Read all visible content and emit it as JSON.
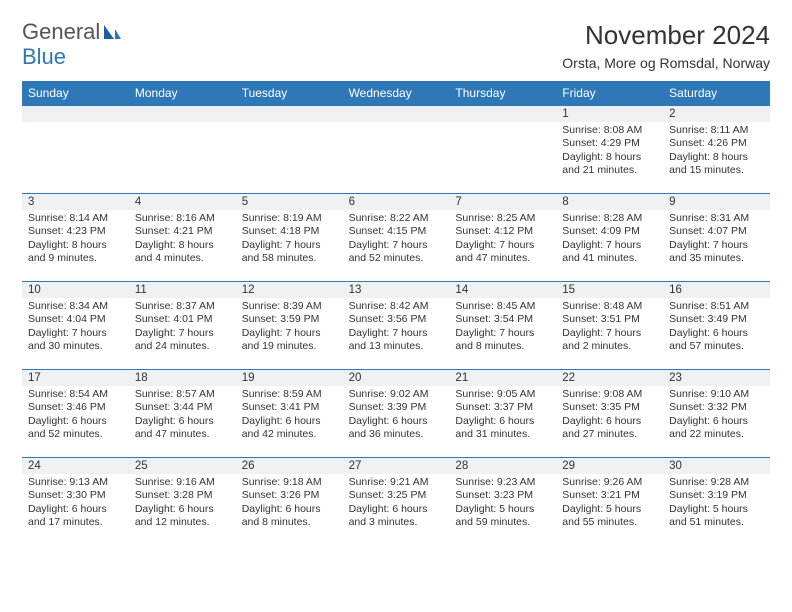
{
  "logo": {
    "line1": "General",
    "line2": "Blue",
    "accent": "#2f78b7"
  },
  "title": "November 2024",
  "location": "Orsta, More og Romsdal, Norway",
  "colors": {
    "header_bg": "#2f78b7",
    "header_fg": "#ffffff",
    "daynum_bg": "#eef0f2",
    "border": "#2f78b7",
    "text": "#333333"
  },
  "daysOfWeek": [
    "Sunday",
    "Monday",
    "Tuesday",
    "Wednesday",
    "Thursday",
    "Friday",
    "Saturday"
  ],
  "leadingBlanks": 5,
  "days": [
    {
      "n": 1,
      "sunrise": "8:08 AM",
      "sunset": "4:29 PM",
      "dl": "8 hours and 21 minutes."
    },
    {
      "n": 2,
      "sunrise": "8:11 AM",
      "sunset": "4:26 PM",
      "dl": "8 hours and 15 minutes."
    },
    {
      "n": 3,
      "sunrise": "8:14 AM",
      "sunset": "4:23 PM",
      "dl": "8 hours and 9 minutes."
    },
    {
      "n": 4,
      "sunrise": "8:16 AM",
      "sunset": "4:21 PM",
      "dl": "8 hours and 4 minutes."
    },
    {
      "n": 5,
      "sunrise": "8:19 AM",
      "sunset": "4:18 PM",
      "dl": "7 hours and 58 minutes."
    },
    {
      "n": 6,
      "sunrise": "8:22 AM",
      "sunset": "4:15 PM",
      "dl": "7 hours and 52 minutes."
    },
    {
      "n": 7,
      "sunrise": "8:25 AM",
      "sunset": "4:12 PM",
      "dl": "7 hours and 47 minutes."
    },
    {
      "n": 8,
      "sunrise": "8:28 AM",
      "sunset": "4:09 PM",
      "dl": "7 hours and 41 minutes."
    },
    {
      "n": 9,
      "sunrise": "8:31 AM",
      "sunset": "4:07 PM",
      "dl": "7 hours and 35 minutes."
    },
    {
      "n": 10,
      "sunrise": "8:34 AM",
      "sunset": "4:04 PM",
      "dl": "7 hours and 30 minutes."
    },
    {
      "n": 11,
      "sunrise": "8:37 AM",
      "sunset": "4:01 PM",
      "dl": "7 hours and 24 minutes."
    },
    {
      "n": 12,
      "sunrise": "8:39 AM",
      "sunset": "3:59 PM",
      "dl": "7 hours and 19 minutes."
    },
    {
      "n": 13,
      "sunrise": "8:42 AM",
      "sunset": "3:56 PM",
      "dl": "7 hours and 13 minutes."
    },
    {
      "n": 14,
      "sunrise": "8:45 AM",
      "sunset": "3:54 PM",
      "dl": "7 hours and 8 minutes."
    },
    {
      "n": 15,
      "sunrise": "8:48 AM",
      "sunset": "3:51 PM",
      "dl": "7 hours and 2 minutes."
    },
    {
      "n": 16,
      "sunrise": "8:51 AM",
      "sunset": "3:49 PM",
      "dl": "6 hours and 57 minutes."
    },
    {
      "n": 17,
      "sunrise": "8:54 AM",
      "sunset": "3:46 PM",
      "dl": "6 hours and 52 minutes."
    },
    {
      "n": 18,
      "sunrise": "8:57 AM",
      "sunset": "3:44 PM",
      "dl": "6 hours and 47 minutes."
    },
    {
      "n": 19,
      "sunrise": "8:59 AM",
      "sunset": "3:41 PM",
      "dl": "6 hours and 42 minutes."
    },
    {
      "n": 20,
      "sunrise": "9:02 AM",
      "sunset": "3:39 PM",
      "dl": "6 hours and 36 minutes."
    },
    {
      "n": 21,
      "sunrise": "9:05 AM",
      "sunset": "3:37 PM",
      "dl": "6 hours and 31 minutes."
    },
    {
      "n": 22,
      "sunrise": "9:08 AM",
      "sunset": "3:35 PM",
      "dl": "6 hours and 27 minutes."
    },
    {
      "n": 23,
      "sunrise": "9:10 AM",
      "sunset": "3:32 PM",
      "dl": "6 hours and 22 minutes."
    },
    {
      "n": 24,
      "sunrise": "9:13 AM",
      "sunset": "3:30 PM",
      "dl": "6 hours and 17 minutes."
    },
    {
      "n": 25,
      "sunrise": "9:16 AM",
      "sunset": "3:28 PM",
      "dl": "6 hours and 12 minutes."
    },
    {
      "n": 26,
      "sunrise": "9:18 AM",
      "sunset": "3:26 PM",
      "dl": "6 hours and 8 minutes."
    },
    {
      "n": 27,
      "sunrise": "9:21 AM",
      "sunset": "3:25 PM",
      "dl": "6 hours and 3 minutes."
    },
    {
      "n": 28,
      "sunrise": "9:23 AM",
      "sunset": "3:23 PM",
      "dl": "5 hours and 59 minutes."
    },
    {
      "n": 29,
      "sunrise": "9:26 AM",
      "sunset": "3:21 PM",
      "dl": "5 hours and 55 minutes."
    },
    {
      "n": 30,
      "sunrise": "9:28 AM",
      "sunset": "3:19 PM",
      "dl": "5 hours and 51 minutes."
    }
  ]
}
